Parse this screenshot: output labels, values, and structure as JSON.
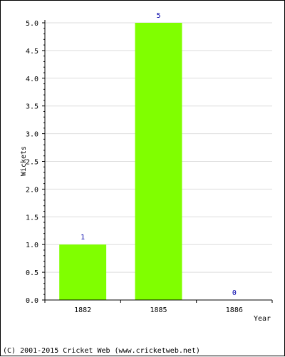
{
  "chart_data": {
    "type": "bar",
    "categories": [
      "1882",
      "1885",
      "1886"
    ],
    "values": [
      1,
      5,
      0
    ],
    "data_labels": [
      "1",
      "5",
      "0"
    ],
    "xlabel": "Year",
    "ylabel": "Wickets",
    "ylim": [
      0,
      5
    ],
    "yticks": [
      "0.0",
      "0.5",
      "1.0",
      "1.5",
      "2.0",
      "2.5",
      "3.0",
      "3.5",
      "4.0",
      "4.5",
      "5.0"
    ],
    "grid": true,
    "legend": "none",
    "colors": {
      "bar": "#80ff00",
      "data_label": "#0000aa",
      "grid": "#dddddd",
      "axis": "#000000"
    }
  },
  "footer": {
    "copyright": "(C) 2001-2015 Cricket Web (www.cricketweb.net)"
  }
}
